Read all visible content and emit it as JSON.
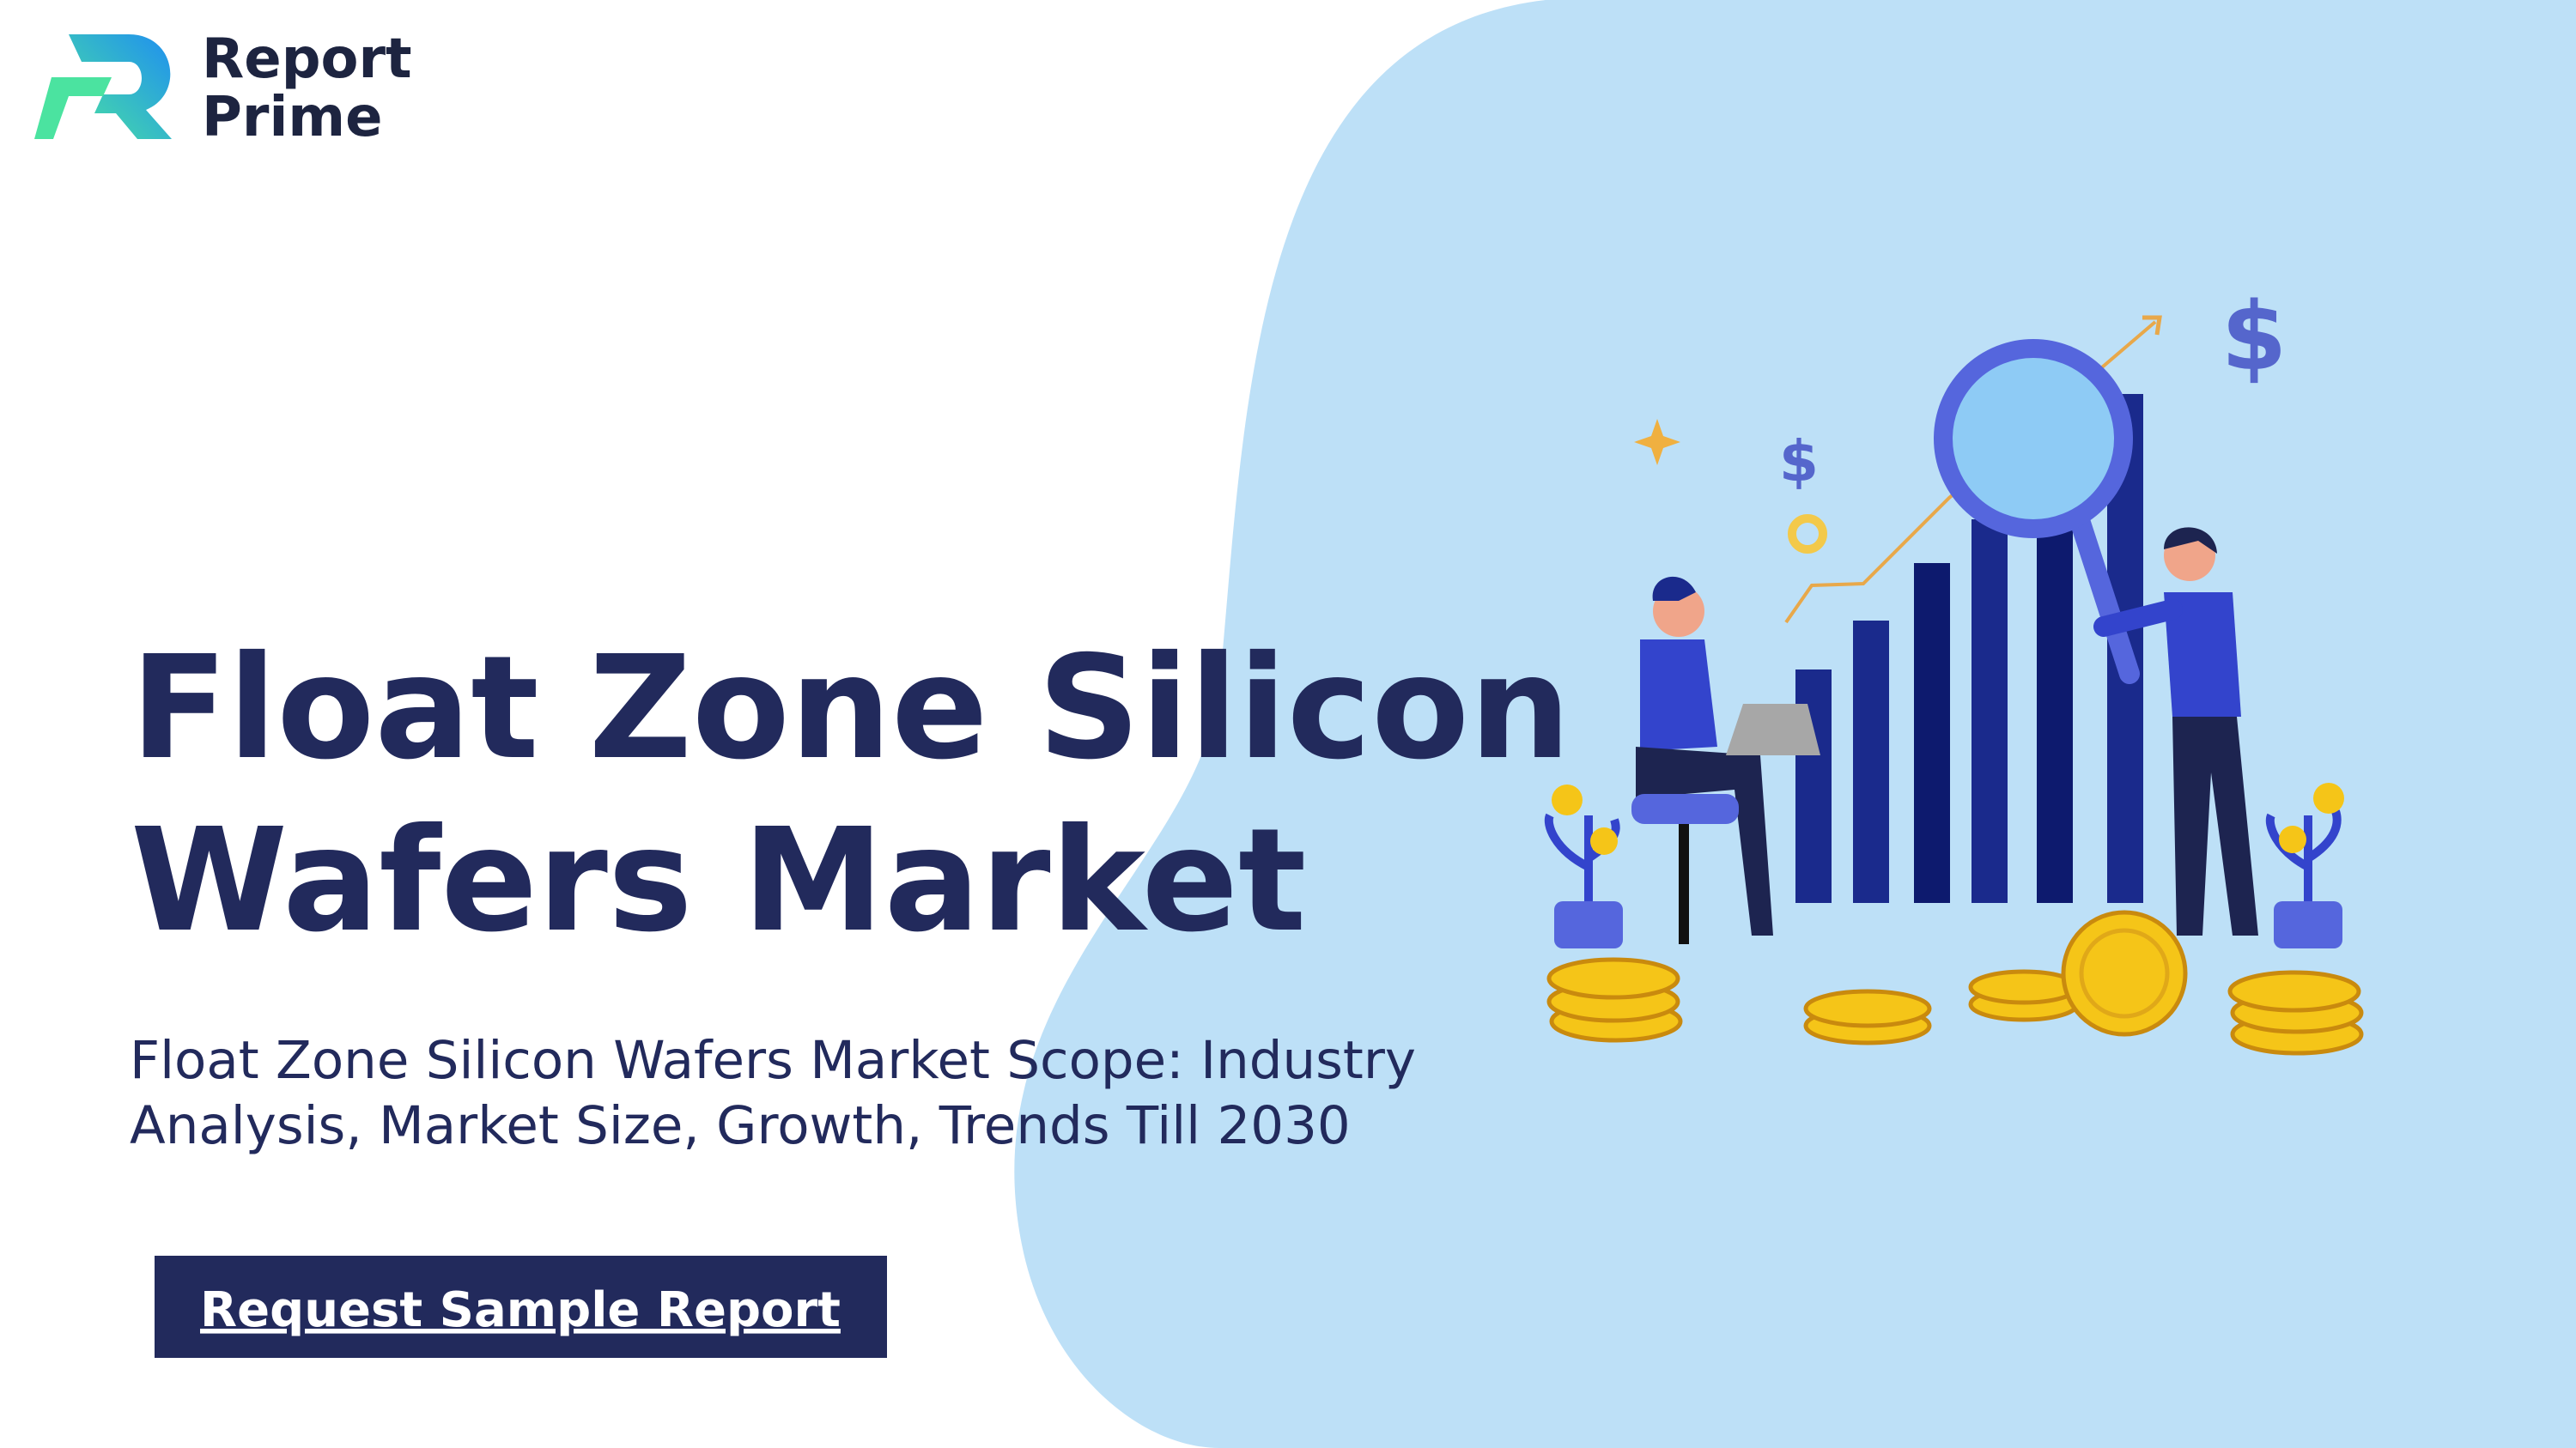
{
  "logo": {
    "line1": "Report",
    "line2": "Prime"
  },
  "title": {
    "line1": "Float Zone Silicon",
    "line2": "Wafers Market"
  },
  "subtitle": {
    "line1": "Float Zone Silicon Wafers Market Scope: Industry",
    "line2": "Analysis, Market Size, Growth, Trends Till 2030"
  },
  "button": {
    "label": "Request Sample Report"
  },
  "illustration": {
    "symbols": [
      "$",
      "$"
    ]
  }
}
